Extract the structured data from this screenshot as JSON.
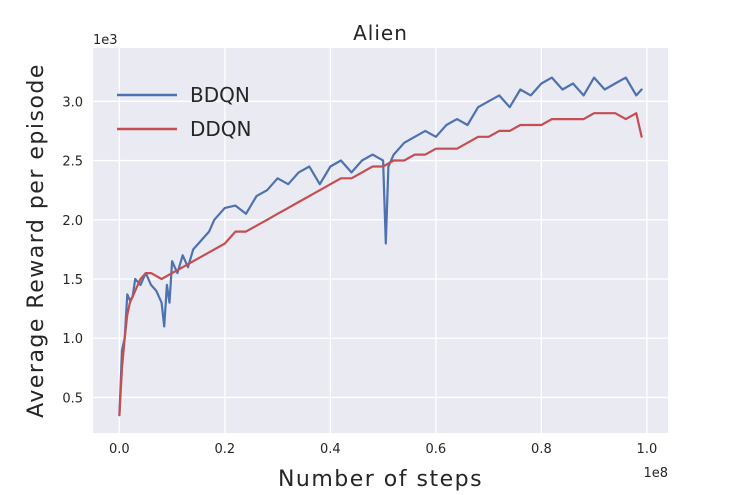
{
  "chart_data": {
    "type": "line",
    "title": "Alien",
    "xlabel": "Number of steps",
    "ylabel": "Average Reward per episode",
    "x_offset_label": "1e8",
    "y_offset_label": "1e3",
    "xlim": [
      -0.05,
      1.04
    ],
    "ylim": [
      0.2,
      3.45
    ],
    "xticks": [
      0.0,
      0.2,
      0.4,
      0.6,
      0.8,
      1.0
    ],
    "xtick_labels": [
      "0.0",
      "0.2",
      "0.4",
      "0.6",
      "0.8",
      "1.0"
    ],
    "yticks": [
      0.5,
      1.0,
      1.5,
      2.0,
      2.5,
      3.0
    ],
    "ytick_labels": [
      "0.5",
      "1.0",
      "1.5",
      "2.0",
      "2.5",
      "3.0"
    ],
    "grid": true,
    "legend_position": "top-left",
    "series": [
      {
        "name": "BDQN",
        "color": "#4C72B0",
        "x": [
          0.0,
          0.005,
          0.01,
          0.015,
          0.02,
          0.025,
          0.03,
          0.04,
          0.05,
          0.06,
          0.07,
          0.08,
          0.085,
          0.09,
          0.095,
          0.1,
          0.11,
          0.12,
          0.13,
          0.14,
          0.15,
          0.16,
          0.17,
          0.18,
          0.19,
          0.2,
          0.22,
          0.24,
          0.26,
          0.28,
          0.3,
          0.32,
          0.34,
          0.36,
          0.38,
          0.4,
          0.42,
          0.44,
          0.46,
          0.48,
          0.5,
          0.505,
          0.51,
          0.52,
          0.54,
          0.56,
          0.58,
          0.6,
          0.62,
          0.64,
          0.66,
          0.68,
          0.7,
          0.72,
          0.74,
          0.76,
          0.78,
          0.8,
          0.82,
          0.84,
          0.86,
          0.88,
          0.9,
          0.92,
          0.94,
          0.96,
          0.98,
          0.99
        ],
        "y": [
          0.35,
          0.9,
          1.0,
          1.37,
          1.32,
          1.35,
          1.5,
          1.45,
          1.55,
          1.45,
          1.4,
          1.3,
          1.1,
          1.45,
          1.3,
          1.65,
          1.55,
          1.7,
          1.6,
          1.75,
          1.8,
          1.85,
          1.9,
          2.0,
          2.05,
          2.1,
          2.12,
          2.05,
          2.2,
          2.25,
          2.35,
          2.3,
          2.4,
          2.45,
          2.3,
          2.45,
          2.5,
          2.4,
          2.5,
          2.55,
          2.5,
          1.8,
          2.45,
          2.55,
          2.65,
          2.7,
          2.75,
          2.7,
          2.8,
          2.85,
          2.8,
          2.95,
          3.0,
          3.05,
          2.95,
          3.1,
          3.05,
          3.15,
          3.2,
          3.1,
          3.15,
          3.05,
          3.2,
          3.1,
          3.15,
          3.2,
          3.05,
          3.1
        ]
      },
      {
        "name": "DDQN",
        "color": "#C44E52",
        "x": [
          0.0,
          0.005,
          0.01,
          0.015,
          0.02,
          0.03,
          0.04,
          0.05,
          0.06,
          0.08,
          0.1,
          0.12,
          0.14,
          0.16,
          0.18,
          0.2,
          0.22,
          0.24,
          0.26,
          0.28,
          0.3,
          0.32,
          0.34,
          0.36,
          0.38,
          0.4,
          0.42,
          0.44,
          0.46,
          0.48,
          0.5,
          0.52,
          0.54,
          0.56,
          0.58,
          0.6,
          0.62,
          0.64,
          0.66,
          0.68,
          0.7,
          0.72,
          0.74,
          0.76,
          0.78,
          0.8,
          0.82,
          0.84,
          0.86,
          0.88,
          0.9,
          0.92,
          0.94,
          0.96,
          0.98,
          0.99
        ],
        "y": [
          0.35,
          0.75,
          1.0,
          1.2,
          1.3,
          1.4,
          1.5,
          1.55,
          1.55,
          1.5,
          1.55,
          1.6,
          1.65,
          1.7,
          1.75,
          1.8,
          1.9,
          1.9,
          1.95,
          2.0,
          2.05,
          2.1,
          2.15,
          2.2,
          2.25,
          2.3,
          2.35,
          2.35,
          2.4,
          2.45,
          2.45,
          2.5,
          2.5,
          2.55,
          2.55,
          2.6,
          2.6,
          2.6,
          2.65,
          2.7,
          2.7,
          2.75,
          2.75,
          2.8,
          2.8,
          2.8,
          2.85,
          2.85,
          2.85,
          2.85,
          2.9,
          2.9,
          2.9,
          2.85,
          2.9,
          2.7
        ]
      }
    ]
  }
}
